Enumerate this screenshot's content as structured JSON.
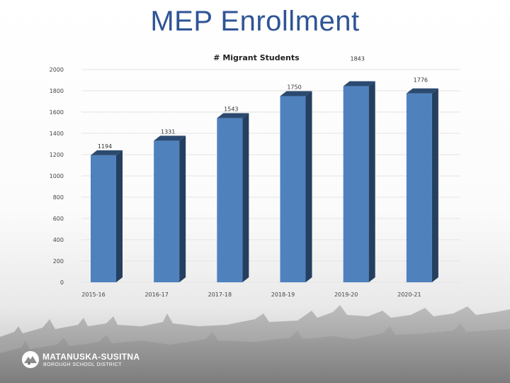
{
  "slide": {
    "title": "MEP Enrollment"
  },
  "logo": {
    "line1": "MATANUSKA-SUSITNA",
    "line2": "BOROUGH SCHOOL DISTRICT"
  },
  "colors": {
    "title": "#2f5496",
    "bar_front": "#4f81bd",
    "bar_side": "#243f60",
    "bar_top": "#2c4a70"
  },
  "chart_data": {
    "type": "bar",
    "title": "# Migrant Students",
    "categories": [
      "2015-16",
      "2016-17",
      "2017-18",
      "2018-19",
      "2019-20",
      "2020-21"
    ],
    "values": [
      1194,
      1331,
      1543,
      1750,
      1843,
      1776
    ],
    "y_ticks": [
      "0",
      "200",
      "400",
      "600",
      "800",
      "1000",
      "1200",
      "1400",
      "1600",
      "1800",
      "2000"
    ],
    "ylim": [
      0,
      2000
    ],
    "grid": true,
    "legend": "none",
    "style": "3d-column"
  }
}
